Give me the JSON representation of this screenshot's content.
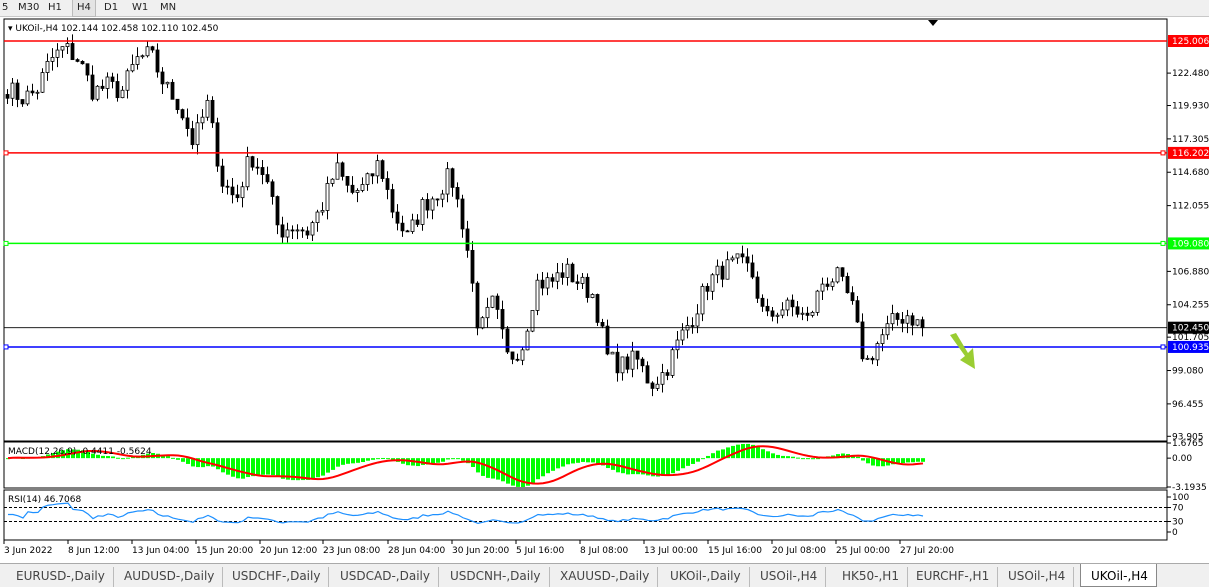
{
  "timeframes": [
    {
      "label": "5"
    },
    {
      "label": "M30"
    },
    {
      "label": "H1"
    },
    {
      "label": "H4",
      "active": true
    },
    {
      "label": "D1"
    },
    {
      "label": "W1"
    },
    {
      "label": "MN"
    }
  ],
  "chart": {
    "symbol_label": "UKOil-,H4",
    "ohlc": "102.144 102.458 102.110 102.450",
    "price_ticks": [
      "122.480",
      "119.930",
      "117.305",
      "114.680",
      "112.055",
      "106.880",
      "104.255",
      "101.705",
      "99.080",
      "96.455",
      "93.905"
    ],
    "horizontal_lines": [
      {
        "price": 125.006,
        "label": "125.006",
        "color": "#ff0000"
      },
      {
        "price": 116.202,
        "label": "116.202",
        "color": "#ff0000"
      },
      {
        "price": 109.08,
        "label": "109.080",
        "color": "#00ff00"
      },
      {
        "price": 100.935,
        "label": "100.935",
        "color": "#0000ff"
      }
    ],
    "current_price": {
      "price": 102.45,
      "label": "102.450",
      "color": "#000000"
    },
    "bull_color": "#00ff00",
    "bear_color": "#00ff00",
    "line_color": "#000000",
    "arrow_color": "#9acd32",
    "close_anchors": [
      121.3,
      120.5,
      121,
      123.5,
      124.5,
      123.5,
      121,
      121.5,
      121,
      123.5,
      124,
      121.5,
      120,
      117,
      120,
      114,
      112.5,
      116,
      114.5,
      110,
      110.5,
      110,
      112,
      115,
      113,
      113.5,
      115.5,
      111.5,
      109.5,
      112,
      113,
      114.5,
      110,
      102,
      104.5,
      100,
      101,
      106,
      106,
      107,
      106,
      105,
      100,
      99.5,
      100,
      98,
      99,
      101.5,
      103.5,
      106,
      107,
      107.5,
      107,
      103,
      104,
      104,
      103,
      106,
      106.5,
      104.5,
      99.5,
      101.5,
      103,
      103.5,
      102.45
    ],
    "time_labels": [
      "3 Jun 2022",
      "8 Jun 12:00",
      "13 Jun 04:00",
      "15 Jun 20:00",
      "20 Jun 12:00",
      "23 Jun 08:00",
      "28 Jun 04:00",
      "30 Jun 20:00",
      "5 Jul 16:00",
      "8 Jul 08:00",
      "13 Jul 00:00",
      "15 Jul 16:00",
      "20 Jul 08:00",
      "25 Jul 00:00",
      "27 Jul 20:00"
    ]
  },
  "macd": {
    "label": "MACD(12,26,9) -0.4411 -0.5624",
    "ticks": [
      "1.6765",
      "0.00",
      "-3.1935"
    ],
    "hist_color": "#00ff00",
    "signal_color": "#ff0000"
  },
  "rsi": {
    "label": "RSI(14) 46.7068",
    "ticks": [
      "100",
      "70",
      "30",
      "0"
    ],
    "line_color": "#1e90ff"
  },
  "tabs": [
    {
      "label": "EURUSD-,Daily"
    },
    {
      "label": "AUDUSD-,Daily"
    },
    {
      "label": "USDCHF-,Daily"
    },
    {
      "label": "USDCAD-,Daily"
    },
    {
      "label": "USDCNH-,Daily"
    },
    {
      "label": "XAUUSD-,Daily"
    },
    {
      "label": "UKOil-,Daily"
    },
    {
      "label": "USOil-,H4"
    },
    {
      "label": "HK50-,H1"
    },
    {
      "label": "EURCHF-,H1"
    },
    {
      "label": "USOil-,H4"
    },
    {
      "label": "UKOil-,H4",
      "active": true
    }
  ]
}
